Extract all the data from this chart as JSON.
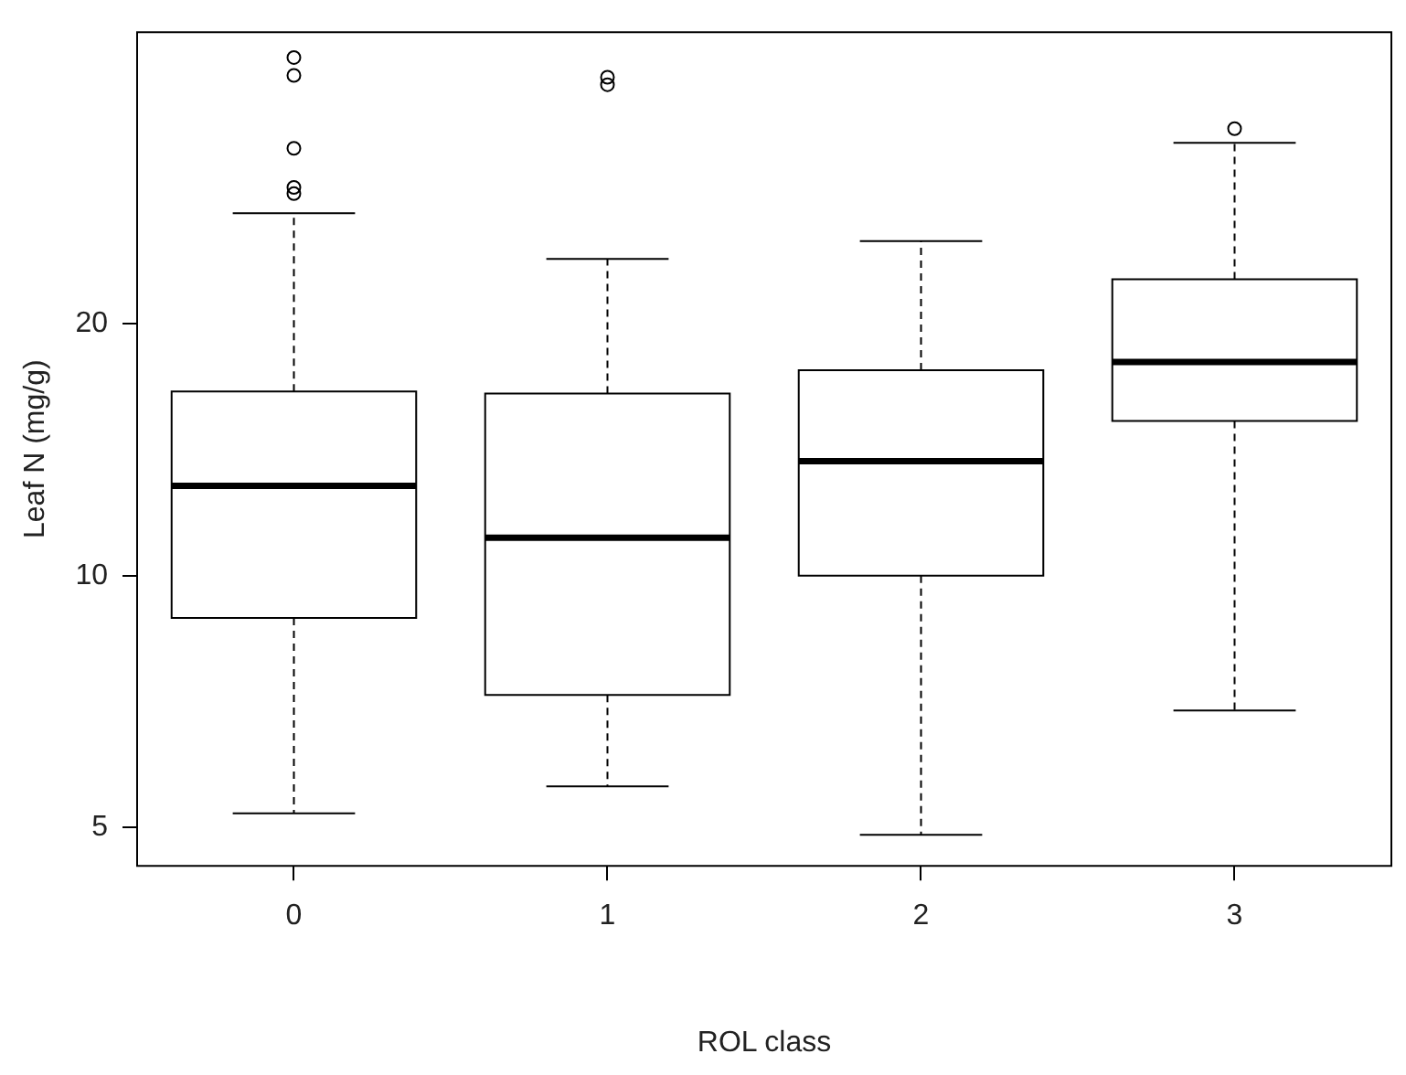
{
  "chart_data": {
    "type": "box",
    "xlabel": "ROL class",
    "ylabel": "Leaf N (mg/g)",
    "categories": [
      "0",
      "1",
      "2",
      "3"
    ],
    "boxes": [
      {
        "low": 5.2,
        "q1": 8.9,
        "median": 12.8,
        "q3": 16.6,
        "high": 27.1,
        "outliers": [
          41.6,
          39.6,
          32.4,
          29.1,
          28.6
        ]
      },
      {
        "low": 5.6,
        "q1": 7.2,
        "median": 11.1,
        "q3": 16.5,
        "high": 23.9,
        "outliers": [
          39.4,
          38.6
        ]
      },
      {
        "low": 4.9,
        "q1": 10,
        "median": 13.7,
        "q3": 17.6,
        "high": 25.1
      },
      {
        "low": 6.9,
        "q1": 15.3,
        "median": 18,
        "q3": 22.6,
        "high": 32.9,
        "outliers": [
          34.2
        ]
      }
    ],
    "color": "#000000",
    "log": "y",
    "ylim": [
      4.5,
      44.6
    ],
    "yticks": [
      5,
      10,
      20
    ],
    "grid": false,
    "legend": false,
    "marker": "circle"
  }
}
